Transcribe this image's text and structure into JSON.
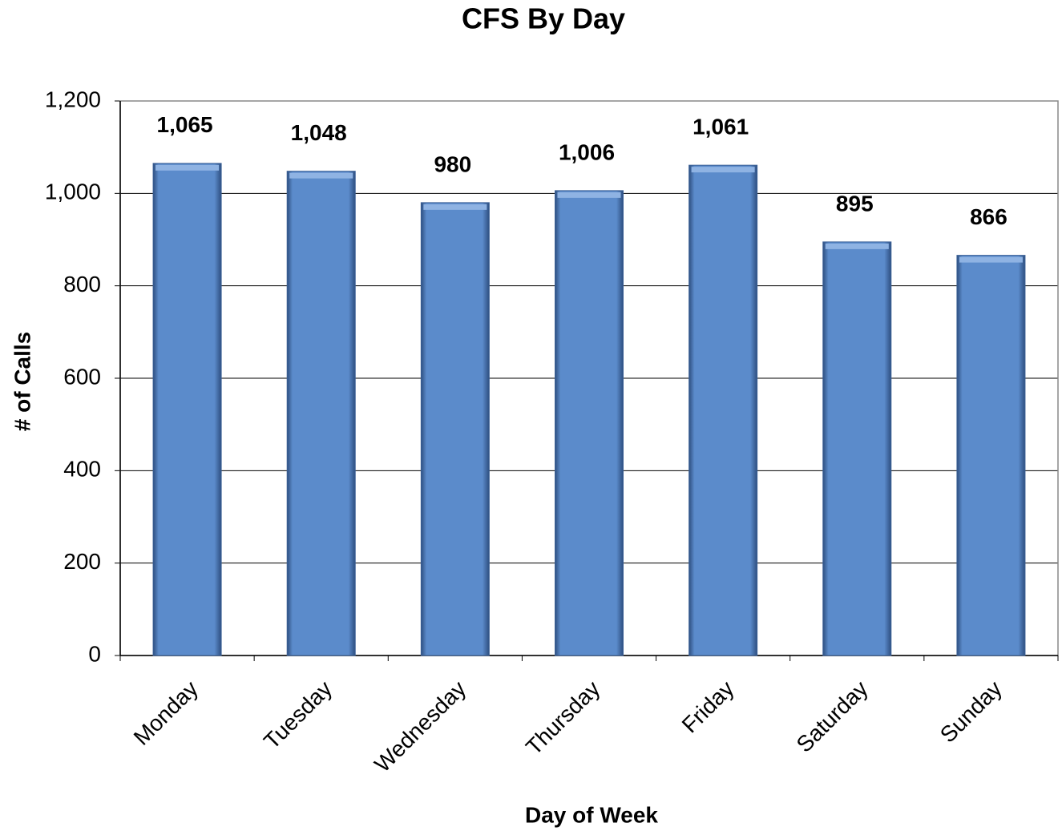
{
  "chart_data": {
    "type": "bar",
    "title": "CFS By Day",
    "x_label": "Day of Week",
    "y_label": "# of Calls",
    "categories": [
      "Monday",
      "Tuesday",
      "Wednesday",
      "Thursday",
      "Friday",
      "Saturday",
      "Sunday"
    ],
    "values": [
      1065,
      1048,
      980,
      1006,
      1061,
      895,
      866
    ],
    "value_labels": [
      "1,065",
      "1,048",
      "980",
      "1,006",
      "1,061",
      "895",
      "866"
    ],
    "color": "#5b8bcb",
    "ylim": [
      0,
      1200
    ],
    "yticks": [
      0,
      200,
      400,
      600,
      800,
      {
        "value": 1000,
        "label": "1,000"
      },
      {
        "value": 1200,
        "label": "1,200"
      }
    ],
    "grid": true
  }
}
